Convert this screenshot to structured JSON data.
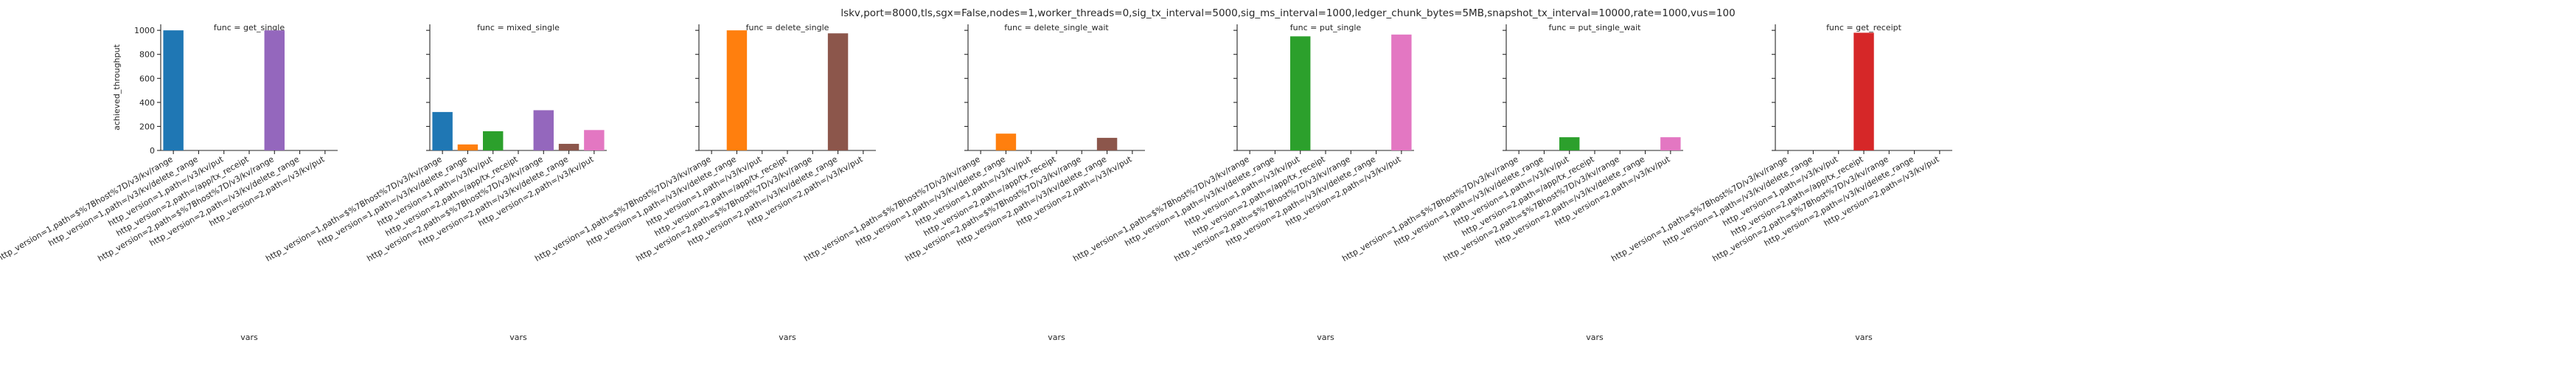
{
  "figure_title": "lskv,port=8000,tls,sgx=False,nodes=1,worker_threads=0,sig_tx_interval=5000,sig_ms_interval=1000,ledger_chunk_bytes=5MB,snapshot_tx_interval=10000,rate=1000,vus=100",
  "chart_data": {
    "type": "bar",
    "xlabel": "vars",
    "ylabel": "achieved_throughput",
    "ylim": [
      0,
      1050
    ],
    "yticks": [
      0,
      200,
      400,
      600,
      800,
      1000
    ],
    "grid": false,
    "categories": [
      "http_version=1,path=$%7Bhost%7D/v3/kv/range",
      "http_version=1,path=/v3/kv/delete_range",
      "http_version=1,path=/v3/kv/put",
      "http_version=2,path=/app/tx_receipt",
      "http_version=2,path=$%7Bhost%7D/v3/kv/range",
      "http_version=2,path=/v3/kv/delete_range",
      "http_version=2,path=/v3/kv/put"
    ],
    "colors": [
      "#1f77b4",
      "#ff7f0e",
      "#2ca02c",
      "#d62728",
      "#9467bd",
      "#8c564b",
      "#e377c2"
    ],
    "panels": [
      {
        "title": "func = get_single",
        "values": [
          1000,
          0,
          0,
          0,
          1000,
          0,
          0
        ]
      },
      {
        "title": "func = mixed_single",
        "values": [
          320,
          50,
          160,
          0,
          335,
          55,
          170
        ]
      },
      {
        "title": "func = delete_single",
        "values": [
          0,
          1000,
          0,
          0,
          0,
          975,
          0
        ]
      },
      {
        "title": "func = delete_single_wait",
        "values": [
          0,
          140,
          0,
          0,
          0,
          105,
          0
        ]
      },
      {
        "title": "func = put_single",
        "values": [
          0,
          0,
          950,
          0,
          0,
          0,
          965
        ]
      },
      {
        "title": "func = put_single_wait",
        "values": [
          0,
          0,
          110,
          0,
          0,
          0,
          110
        ]
      },
      {
        "title": "func = get_receipt",
        "values": [
          0,
          0,
          0,
          980,
          0,
          0,
          0
        ]
      }
    ]
  }
}
